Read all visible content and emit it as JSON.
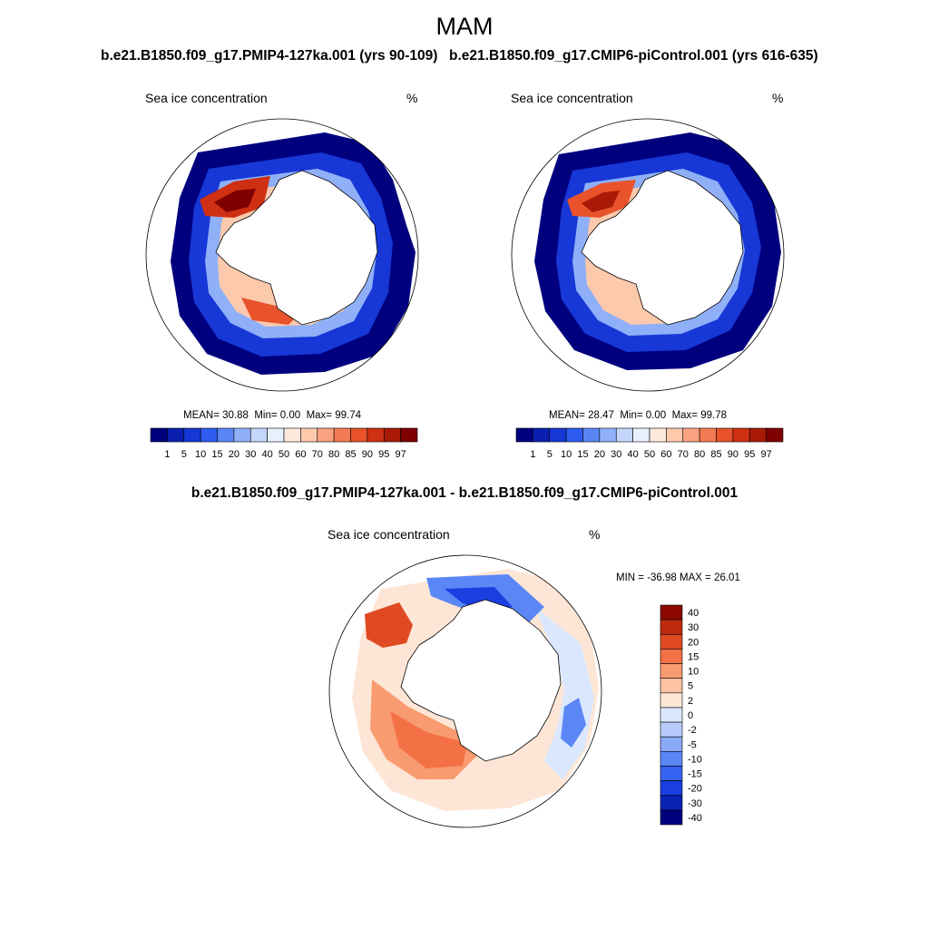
{
  "figure": {
    "season": "MAM",
    "colors": {
      "ocean_outline": "#000000",
      "land": "#ffffff",
      "full_scale": [
        "#00007f",
        "#0a1fb0",
        "#1737d6",
        "#2f5cf0",
        "#5a86f5",
        "#8fb0f8",
        "#c4d6fb",
        "#e8f0fe",
        "#fde9dc",
        "#fcc9ad",
        "#f9a27f",
        "#f47a53",
        "#e8532c",
        "#cf2f12",
        "#a81a06",
        "#7f0000"
      ],
      "diff_scale": [
        "#00007f",
        "#0a22b3",
        "#1a3fe0",
        "#3563f2",
        "#5b87f6",
        "#8aaaf8",
        "#b6cbfb",
        "#dbe7fd",
        "#fde6d6",
        "#fcc2a3",
        "#f99b70",
        "#f47146",
        "#e04a23",
        "#bf2a0d",
        "#8c0800"
      ]
    },
    "panels": [
      {
        "case_title": "b.e21.B1850.f09_g17.PMIP4-127ka.001 (yrs 90-109)",
        "variable": "Sea ice concentration",
        "units": "%",
        "stats": {
          "mean": "30.88",
          "min": "0.00",
          "max": "99.74"
        }
      },
      {
        "case_title": "b.e21.B1850.f09_g17.CMIP6-piControl.001 (yrs 616-635)",
        "variable": "Sea ice concentration",
        "units": "%",
        "stats": {
          "mean": "28.47",
          "min": "0.00",
          "max": "99.78"
        }
      }
    ],
    "difference": {
      "title": "b.e21.B1850.f09_g17.PMIP4-127ka.001 - b.e21.B1850.f09_g17.CMIP6-piControl.001",
      "variable": "Sea ice concentration",
      "units": "%",
      "stats": {
        "min": "-36.98",
        "max": "26.01"
      }
    },
    "labels": {
      "mean": "MEAN=",
      "min": "Min=",
      "max": "Max=",
      "diff_min": "MIN =",
      "diff_max": "MAX ="
    },
    "colorbar_levels": [
      "1",
      "5",
      "10",
      "15",
      "20",
      "30",
      "40",
      "50",
      "60",
      "70",
      "80",
      "85",
      "90",
      "95",
      "97"
    ],
    "diff_levels": [
      "40",
      "30",
      "20",
      "15",
      "10",
      "5",
      "2",
      "0",
      "-2",
      "-5",
      "-10",
      "-15",
      "-20",
      "-30",
      "-40"
    ]
  }
}
